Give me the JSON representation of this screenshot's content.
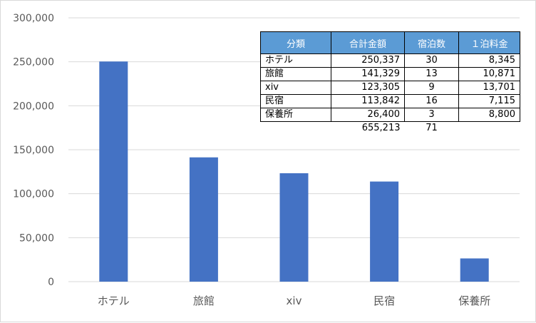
{
  "chart_data": {
    "type": "bar",
    "categories": [
      "ホテル",
      "旅館",
      "xiv",
      "民宿",
      "保養所"
    ],
    "values": [
      250337,
      141329,
      123305,
      113842,
      26400
    ],
    "title": "",
    "xlabel": "",
    "ylabel": "",
    "ylim": [
      0,
      300000
    ],
    "yticks": [
      "0",
      "50,000",
      "100,000",
      "150,000",
      "200,000",
      "250,000",
      "300,000"
    ],
    "ytick_values": [
      0,
      50000,
      100000,
      150000,
      200000,
      250000,
      300000
    ],
    "grid": true,
    "legend": "none",
    "bar_color": "#4472c4",
    "grid_color": "#d9d9d9"
  },
  "table": {
    "headers": [
      "分類",
      "合計金額",
      "宿泊数",
      "１泊料金"
    ],
    "header_color": "#5b9bd5",
    "rows": [
      [
        "ホテル",
        "250,337",
        "30",
        "8,345"
      ],
      [
        "旅館",
        "141,329",
        "13",
        "10,871"
      ],
      [
        "xiv",
        "123,305",
        "9",
        "13,701"
      ],
      [
        "民宿",
        "113,842",
        "16",
        "7,115"
      ],
      [
        "保養所",
        "26,400",
        "3",
        "8,800"
      ]
    ],
    "totals": [
      "",
      "655,213",
      "71",
      ""
    ]
  }
}
